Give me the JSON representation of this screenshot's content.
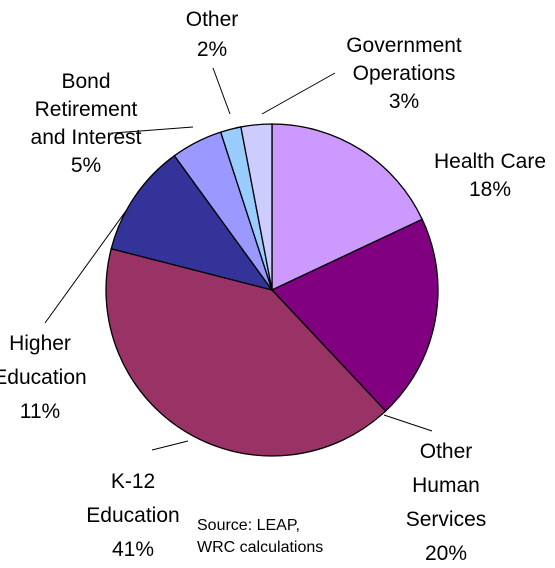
{
  "chart_data": {
    "type": "pie",
    "start_angle_deg": 0,
    "direction": "clockwise",
    "slices": [
      {
        "lines": [
          "Health Care",
          "18%"
        ],
        "value": 18,
        "color": "#cc99ff"
      },
      {
        "lines": [
          "Other",
          "Human",
          "Services",
          "20%"
        ],
        "value": 20,
        "color": "#800080"
      },
      {
        "lines": [
          "K-12",
          "Education",
          "41%"
        ],
        "value": 41,
        "color": "#993366"
      },
      {
        "lines": [
          "Higher",
          "Education",
          "11%"
        ],
        "value": 11,
        "color": "#333399"
      },
      {
        "lines": [
          "Bond",
          "Retirement",
          "and Interest",
          "5%"
        ],
        "value": 5,
        "color": "#9999ff"
      },
      {
        "lines": [
          "Other",
          "2%"
        ],
        "value": 2,
        "color": "#99ccff"
      },
      {
        "lines": [
          "Government",
          "Operations",
          "3%"
        ],
        "value": 3,
        "color": "#ccccff"
      }
    ],
    "annotation": [
      "Source: LEAP,",
      "WRC calculations"
    ]
  }
}
